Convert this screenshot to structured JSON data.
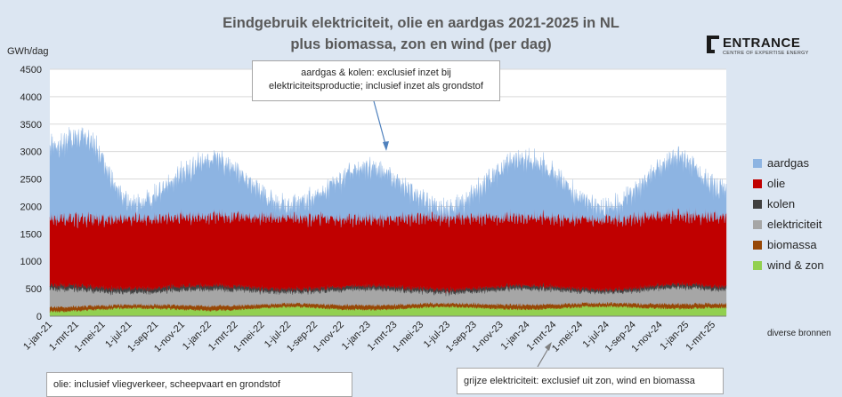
{
  "title_line1": "Eindgebruik elektriciteit, olie en aardgas 2021-2025 in NL",
  "title_line2": "plus biomassa, zon en wind (per dag)",
  "logo": {
    "name": "ENTRANCE",
    "tagline": "CENTRE OF EXPERTISE ENERGY"
  },
  "annotations": {
    "top_note_line1": "aardgas & kolen: exclusief inzet bij",
    "top_note_line2": "elektriciteitsproductie; inclusief inzet als grondstof",
    "olie_note": "olie: inclusief vliegverkeer, scheepvaart en grondstof",
    "grijs_note": "grijze elektriciteit: exclusief uit zon, wind en biomassa",
    "source": "diverse bronnen"
  },
  "colors": {
    "aardgas": "#8db4e2",
    "olie": "#c00000",
    "kolen": "#404040",
    "elektriciteit": "#a6a6a6",
    "biomassa": "#974706",
    "wind_zon": "#92d050"
  },
  "chart_data": {
    "type": "area",
    "stacked": true,
    "title": "Eindgebruik elektriciteit, olie en aardgas 2021-2025 in NL plus biomassa, zon en wind (per dag)",
    "ylabel": "GWh/dag",
    "ylim": [
      0,
      4500
    ],
    "yticks": [
      "0",
      "500",
      "1000",
      "1500",
      "2000",
      "2500",
      "3000",
      "3500",
      "4000",
      "4500"
    ],
    "xticks": [
      "1-jan-21",
      "1-mrt-21",
      "1-mei-21",
      "1-jul-21",
      "1-sep-21",
      "1-nov-21",
      "1-jan-22",
      "1-mrt-22",
      "1-mei-22",
      "1-jul-22",
      "1-sep-22",
      "1-nov-22",
      "1-jan-23",
      "1-mrt-23",
      "1-mei-23",
      "1-jul-23",
      "1-sep-23",
      "1-nov-23",
      "1-jan-24",
      "1-mrt-24",
      "1-mei-24",
      "1-jul-24",
      "1-sep-24",
      "1-nov-24",
      "1-jan-25",
      "1-mrt-25"
    ],
    "x_range": [
      "2021-01-01",
      "2025-04-30"
    ],
    "grid": true,
    "legend_position": "right",
    "series": [
      {
        "name": "wind & zon",
        "colorKey": "wind_zon",
        "x": [
          "2021-01",
          "2021-07",
          "2022-01",
          "2022-07",
          "2023-01",
          "2023-07",
          "2024-01",
          "2024-07",
          "2025-01",
          "2025-04"
        ],
        "values": [
          90,
          150,
          110,
          170,
          120,
          175,
          130,
          180,
          140,
          160
        ]
      },
      {
        "name": "biomassa",
        "colorKey": "biomassa",
        "x": [
          "2021-01",
          "2021-07",
          "2022-01",
          "2022-07",
          "2023-01",
          "2023-07",
          "2024-01",
          "2024-07",
          "2025-01",
          "2025-04"
        ],
        "values": [
          80,
          60,
          80,
          60,
          80,
          60,
          80,
          60,
          80,
          70
        ]
      },
      {
        "name": "elektriciteit",
        "colorKey": "elektriciteit",
        "x": [
          "2021-01",
          "2021-07",
          "2022-01",
          "2022-07",
          "2023-01",
          "2023-07",
          "2024-01",
          "2024-07",
          "2025-01",
          "2025-04"
        ],
        "values": [
          330,
          230,
          310,
          210,
          300,
          200,
          300,
          200,
          310,
          260
        ]
      },
      {
        "name": "kolen",
        "colorKey": "kolen",
        "x": [
          "2021-01",
          "2021-07",
          "2022-01",
          "2022-07",
          "2023-01",
          "2023-07",
          "2024-01",
          "2024-07",
          "2025-01",
          "2025-04"
        ],
        "values": [
          70,
          70,
          70,
          60,
          60,
          60,
          60,
          50,
          60,
          60
        ]
      },
      {
        "name": "olie",
        "colorKey": "olie",
        "x": [
          "2021-01",
          "2021-07",
          "2022-01",
          "2022-07",
          "2023-01",
          "2023-07",
          "2024-01",
          "2024-07",
          "2025-01",
          "2025-04"
        ],
        "values": [
          1230,
          1300,
          1280,
          1330,
          1250,
          1330,
          1270,
          1300,
          1290,
          1300
        ]
      },
      {
        "name": "aardgas",
        "colorKey": "aardgas",
        "x": [
          "2021-01",
          "2021-03",
          "2021-07",
          "2022-01",
          "2022-07",
          "2023-01",
          "2023-07",
          "2024-01",
          "2024-07",
          "2025-01",
          "2025-04"
        ],
        "values": [
          1300,
          1500,
          250,
          1000,
          200,
          900,
          150,
          1050,
          200,
          1000,
          500
        ]
      }
    ]
  },
  "legend": [
    {
      "label": "aardgas",
      "colorKey": "aardgas"
    },
    {
      "label": "olie",
      "colorKey": "olie"
    },
    {
      "label": "kolen",
      "colorKey": "kolen"
    },
    {
      "label": "elektriciteit",
      "colorKey": "elektriciteit"
    },
    {
      "label": "biomassa",
      "colorKey": "biomassa"
    },
    {
      "label": "wind & zon",
      "colorKey": "wind_zon"
    }
  ]
}
